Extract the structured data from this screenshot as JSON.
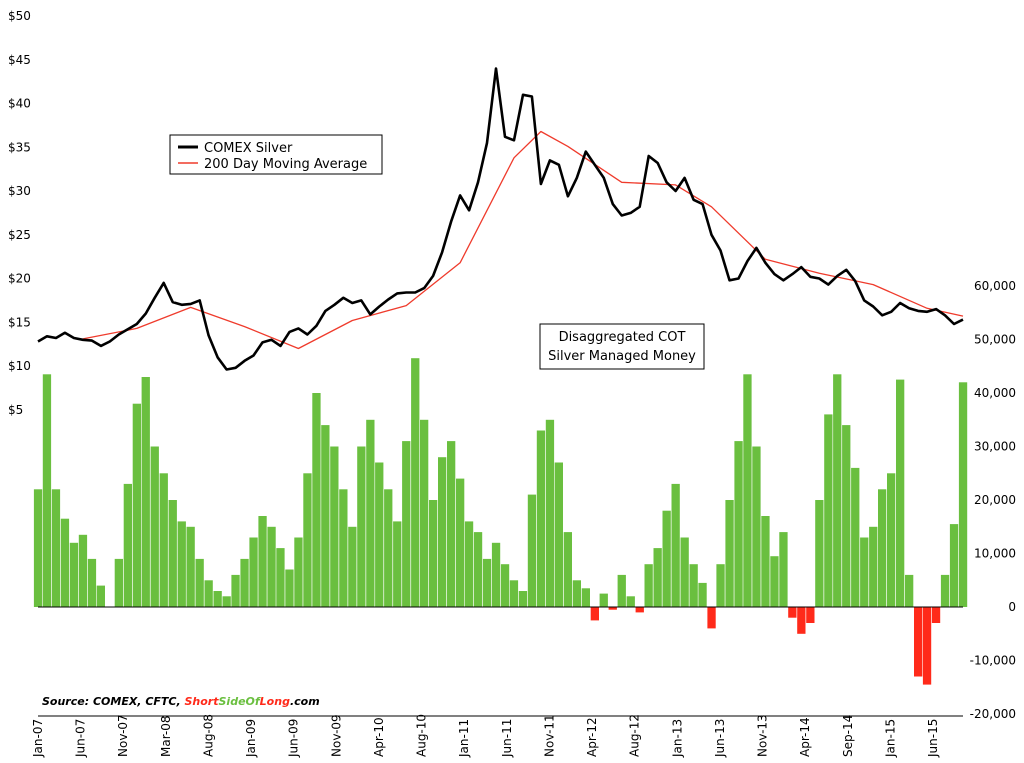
{
  "chart_data": [
    {
      "type": "line",
      "ylim": [
        0,
        50
      ],
      "y_ticks": [
        "$5",
        "$10",
        "$15",
        "$20",
        "$25",
        "$30",
        "$35",
        "$40",
        "$45",
        "$50"
      ],
      "y_tick_values": [
        5,
        10,
        15,
        20,
        25,
        30,
        35,
        40,
        45,
        50
      ],
      "x_ticks": [
        "Jan-07",
        "Jun-07",
        "Nov-07",
        "Mar-08",
        "Aug-08",
        "Jan-09",
        "Jun-09",
        "Nov-09",
        "Apr-10",
        "Aug-10",
        "Jan-11",
        "Jun-11",
        "Nov-11",
        "Apr-12",
        "Aug-12",
        "Jan-13",
        "Jun-13",
        "Nov-13",
        "Apr-14",
        "Sep-14",
        "Jan-15",
        "Jun-15"
      ],
      "x_range": [
        "2007-01",
        "2015-08"
      ],
      "legend": "left",
      "grid": false,
      "series": [
        {
          "name": "COMEX Silver",
          "color": "#000000",
          "x": [
            "2007-01",
            "2007-02",
            "2007-03",
            "2007-04",
            "2007-05",
            "2007-06",
            "2007-07",
            "2007-08",
            "2007-09",
            "2007-10",
            "2007-11",
            "2007-12",
            "2008-01",
            "2008-02",
            "2008-03",
            "2008-04",
            "2008-05",
            "2008-06",
            "2008-07",
            "2008-08",
            "2008-09",
            "2008-10",
            "2008-11",
            "2008-12",
            "2009-01",
            "2009-02",
            "2009-03",
            "2009-04",
            "2009-05",
            "2009-06",
            "2009-07",
            "2009-08",
            "2009-09",
            "2009-10",
            "2009-11",
            "2009-12",
            "2010-01",
            "2010-02",
            "2010-03",
            "2010-04",
            "2010-05",
            "2010-06",
            "2010-07",
            "2010-08",
            "2010-09",
            "2010-10",
            "2010-11",
            "2010-12",
            "2011-01",
            "2011-02",
            "2011-03",
            "2011-04",
            "2011-05",
            "2011-06",
            "2011-07",
            "2011-08",
            "2011-09",
            "2011-10",
            "2011-11",
            "2011-12",
            "2012-01",
            "2012-02",
            "2012-03",
            "2012-04",
            "2012-05",
            "2012-06",
            "2012-07",
            "2012-08",
            "2012-09",
            "2012-10",
            "2012-11",
            "2012-12",
            "2013-01",
            "2013-02",
            "2013-03",
            "2013-04",
            "2013-05",
            "2013-06",
            "2013-07",
            "2013-08",
            "2013-09",
            "2013-10",
            "2013-11",
            "2013-12",
            "2014-01",
            "2014-02",
            "2014-03",
            "2014-04",
            "2014-05",
            "2014-06",
            "2014-07",
            "2014-08",
            "2014-09",
            "2014-10",
            "2014-11",
            "2014-12",
            "2015-01",
            "2015-02",
            "2015-03",
            "2015-04",
            "2015-05",
            "2015-06",
            "2015-07",
            "2015-08"
          ],
          "values": [
            12.8,
            13.4,
            13.2,
            13.8,
            13.2,
            13.0,
            12.9,
            12.3,
            12.8,
            13.6,
            14.2,
            14.8,
            16.0,
            17.8,
            19.5,
            17.3,
            17.0,
            17.1,
            17.5,
            13.5,
            11.0,
            9.6,
            9.8,
            10.6,
            11.2,
            12.7,
            13.0,
            12.3,
            13.9,
            14.3,
            13.6,
            14.6,
            16.3,
            17.0,
            17.8,
            17.2,
            17.5,
            15.9,
            16.8,
            17.6,
            18.3,
            18.4,
            18.4,
            18.9,
            20.3,
            23.0,
            26.5,
            29.5,
            27.8,
            31.0,
            35.5,
            44.0,
            36.2,
            35.8,
            41.0,
            40.8,
            30.8,
            33.5,
            33.0,
            29.4,
            31.5,
            34.5,
            33.0,
            31.5,
            28.5,
            27.2,
            27.5,
            28.2,
            34.0,
            33.2,
            31.0,
            30.0,
            31.5,
            29.0,
            28.5,
            25.0,
            23.2,
            19.8,
            20.0,
            22.0,
            23.5,
            21.8,
            20.5,
            19.8,
            20.5,
            21.3,
            20.2,
            20.0,
            19.3,
            20.3,
            21.0,
            19.7,
            17.5,
            16.8,
            15.8,
            16.2,
            17.2,
            16.6,
            16.3,
            16.2,
            16.5,
            15.8,
            14.8,
            15.3
          ]
        },
        {
          "name": "200 Day Moving Average",
          "color": "#ef3b2c",
          "x": [
            "2007-06",
            "2007-12",
            "2008-06",
            "2008-12",
            "2009-06",
            "2009-12",
            "2010-06",
            "2010-12",
            "2011-06",
            "2011-09",
            "2011-12",
            "2012-06",
            "2012-12",
            "2013-04",
            "2013-10",
            "2014-04",
            "2014-10",
            "2015-04",
            "2015-08"
          ],
          "values": [
            13.1,
            14.3,
            16.7,
            14.5,
            12.0,
            15.2,
            16.9,
            21.8,
            33.8,
            36.8,
            35.1,
            31.0,
            30.7,
            28.2,
            22.2,
            20.6,
            19.3,
            16.6,
            15.7
          ]
        }
      ]
    },
    {
      "type": "bar",
      "title": "Disaggregated COT",
      "subtitle": "Silver Managed Money",
      "ylim": [
        -20000,
        60000
      ],
      "y_ticks": [
        "-20,000",
        "-10,000",
        "0",
        "10,000",
        "20,000",
        "30,000",
        "40,000",
        "50,000",
        "60,000"
      ],
      "y_tick_values": [
        -20000,
        -10000,
        0,
        10000,
        20000,
        30000,
        40000,
        50000,
        60000
      ],
      "positive_color": "#6abf3f",
      "negative_color": "#ff2a1a",
      "x": [
        "2007-01",
        "2007-02",
        "2007-03",
        "2007-04",
        "2007-05",
        "2007-06",
        "2007-07",
        "2007-08",
        "2007-09",
        "2007-10",
        "2007-11",
        "2007-12",
        "2008-01",
        "2008-02",
        "2008-03",
        "2008-04",
        "2008-05",
        "2008-06",
        "2008-07",
        "2008-08",
        "2008-09",
        "2008-10",
        "2008-11",
        "2008-12",
        "2009-01",
        "2009-02",
        "2009-03",
        "2009-04",
        "2009-05",
        "2009-06",
        "2009-07",
        "2009-08",
        "2009-09",
        "2009-10",
        "2009-11",
        "2009-12",
        "2010-01",
        "2010-02",
        "2010-03",
        "2010-04",
        "2010-05",
        "2010-06",
        "2010-07",
        "2010-08",
        "2010-09",
        "2010-10",
        "2010-11",
        "2010-12",
        "2011-01",
        "2011-02",
        "2011-03",
        "2011-04",
        "2011-05",
        "2011-06",
        "2011-07",
        "2011-08",
        "2011-09",
        "2011-10",
        "2011-11",
        "2011-12",
        "2012-01",
        "2012-02",
        "2012-03",
        "2012-04",
        "2012-05",
        "2012-06",
        "2012-07",
        "2012-08",
        "2012-09",
        "2012-10",
        "2012-11",
        "2012-12",
        "2013-01",
        "2013-02",
        "2013-03",
        "2013-04",
        "2013-05",
        "2013-06",
        "2013-07",
        "2013-08",
        "2013-09",
        "2013-10",
        "2013-11",
        "2013-12",
        "2014-01",
        "2014-02",
        "2014-03",
        "2014-04",
        "2014-05",
        "2014-06",
        "2014-07",
        "2014-08",
        "2014-09",
        "2014-10",
        "2014-11",
        "2014-12",
        "2015-01",
        "2015-02",
        "2015-03",
        "2015-04",
        "2015-05",
        "2015-06",
        "2015-07",
        "2015-08"
      ],
      "values": [
        22000,
        43500,
        22000,
        16500,
        12000,
        13500,
        9000,
        4000,
        0,
        9000,
        23000,
        38000,
        43000,
        30000,
        25000,
        20000,
        16000,
        15000,
        9000,
        5000,
        3000,
        2000,
        6000,
        9000,
        13000,
        17000,
        15000,
        11000,
        7000,
        13000,
        25000,
        40000,
        34000,
        30000,
        22000,
        15000,
        30000,
        35000,
        27000,
        22000,
        16000,
        31000,
        46500,
        35000,
        20000,
        28000,
        31000,
        24000,
        16000,
        14000,
        9000,
        12000,
        8000,
        5000,
        3000,
        21000,
        33000,
        35000,
        27000,
        14000,
        5000,
        3500,
        -2500,
        2500,
        -500,
        6000,
        2000,
        -1000,
        8000,
        11000,
        18000,
        23000,
        13000,
        8000,
        4500,
        -4000,
        8000,
        20000,
        31000,
        43500,
        30000,
        17000,
        9500,
        14000,
        -2000,
        -5000,
        -3000,
        20000,
        36000,
        43500,
        34000,
        26000,
        13000,
        15000,
        22000,
        25000,
        42500,
        6000,
        -13000,
        -14500,
        -3000,
        6000,
        15500,
        42000
      ]
    }
  ],
  "legend": {
    "line1": "COMEX Silver",
    "line2": "200 Day Moving Average"
  },
  "source": {
    "prefix": "Source: COMEX, CFTC, ",
    "short": "Short",
    "side": "SideOf",
    "long": "Long",
    "suffix": ".com",
    "color_red": "#ff2a1a",
    "color_green": "#6abf3f"
  }
}
